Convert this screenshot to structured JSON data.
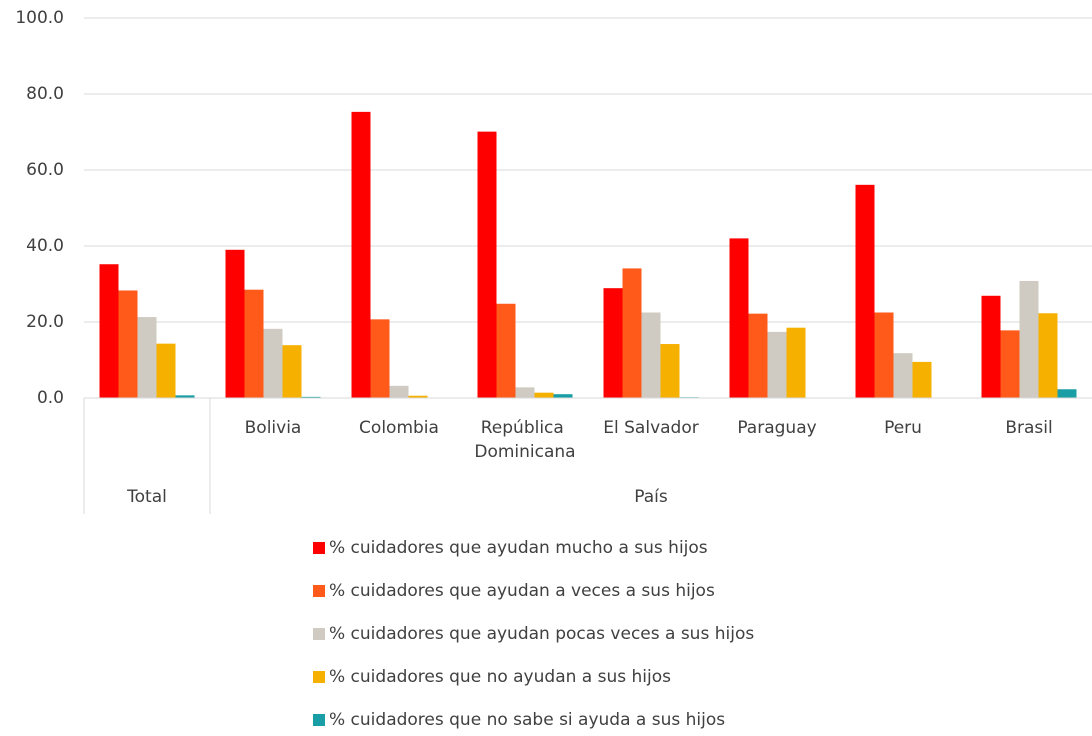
{
  "chart_data": {
    "type": "bar",
    "categories": [
      null,
      "Bolivia",
      "Colombia",
      "República Dominicana",
      "El Salvador",
      "Paraguay",
      "Peru",
      "Brasil"
    ],
    "groups": [
      {
        "label": "Total",
        "size": 1
      },
      {
        "label": "País",
        "size": 7
      }
    ],
    "series": [
      {
        "name": "% cuidadores que ayudan mucho a sus hijos",
        "color": "#ff0000",
        "values": [
          35.2,
          39.0,
          75.3,
          70.1,
          28.9,
          42.0,
          56.1,
          26.9
        ]
      },
      {
        "name": "% cuidadores que ayudan a veces a sus hijos",
        "color": "#ff5a1a",
        "values": [
          28.3,
          28.5,
          20.7,
          24.8,
          34.1,
          22.2,
          22.5,
          17.8
        ]
      },
      {
        "name": "% cuidadores que ayudan pocas veces a sus hijos",
        "color": "#d0cbc2",
        "values": [
          21.3,
          18.2,
          3.2,
          2.8,
          22.5,
          17.4,
          11.8,
          30.8
        ]
      },
      {
        "name": "% cuidadores que no ayudan a sus hijos",
        "color": "#f5b000",
        "values": [
          14.3,
          13.9,
          0.6,
          1.4,
          14.2,
          18.5,
          9.5,
          22.3
        ]
      },
      {
        "name": "% cuidadores que no sabe si ayuda a sus hijos",
        "color": "#1a9ea6",
        "values": [
          0.7,
          0.3,
          0.1,
          1.0,
          0.2,
          0.0,
          0.0,
          2.3
        ]
      }
    ],
    "ylim": [
      0,
      100
    ],
    "yticks": [
      {
        "value": 0,
        "label": "0.0"
      },
      {
        "value": 20,
        "label": "20.0"
      },
      {
        "value": 40,
        "label": "40.0"
      },
      {
        "value": 60,
        "label": "60.0"
      },
      {
        "value": 80,
        "label": "80.0"
      },
      {
        "value": 100,
        "label": "100.0"
      }
    ],
    "grid": true
  }
}
